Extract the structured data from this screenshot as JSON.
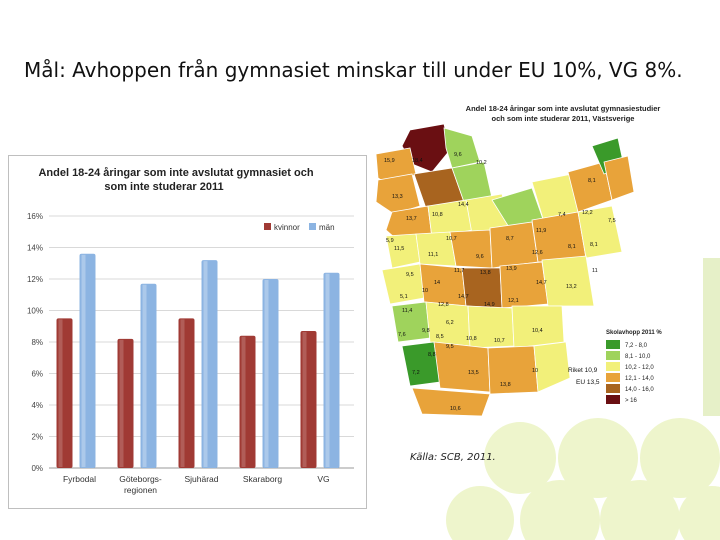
{
  "slide": {
    "title": "Mål: Avhoppen från gymnasiet minskar till under EU 10%, VG 8%.",
    "source": "Källa: SCB, 2011."
  },
  "chart_data": {
    "type": "bar",
    "title": "Andel 18-24 åringar som inte avslutat gymnasiet och som inte studerar 2011",
    "title_lines": [
      "Andel 18-24 åringar som inte avslutat gymnasiet och",
      "som inte studerar 2011"
    ],
    "categories": [
      "Fyrbodal",
      "Göteborgs-regionen",
      "Sjuhärad",
      "Skaraborg",
      "VG"
    ],
    "category_lines": [
      [
        "Fyrbodal"
      ],
      [
        "Göteborgs-",
        "regionen"
      ],
      [
        "Sjuhärad"
      ],
      [
        "Skaraborg"
      ],
      [
        "VG"
      ]
    ],
    "series": [
      {
        "name": "kvinnor",
        "color": "#a03a34",
        "values": [
          9.5,
          8.2,
          9.5,
          8.4,
          8.7
        ]
      },
      {
        "name": "män",
        "color": "#8cb4e2",
        "values": [
          13.6,
          11.7,
          13.2,
          12.0,
          12.4
        ]
      }
    ],
    "ylim": [
      0,
      16
    ],
    "yticks": [
      "0%",
      "2%",
      "4%",
      "6%",
      "8%",
      "10%",
      "12%",
      "14%",
      "16%"
    ],
    "grid": true,
    "legend_position": "top-right"
  },
  "map": {
    "title_lines": [
      "Andel 18-24 åringar som inte avslutat gymnasiestudier",
      "och som inte studerar 2011, Västsverige"
    ],
    "legend_title": "Skolavhopp 2011 %",
    "legend": [
      {
        "label": "7,2 - 8,0",
        "color": "#3a9a2a"
      },
      {
        "label": "8,1 - 10,0",
        "color": "#9fd35c"
      },
      {
        "label": "10,2 - 12,0",
        "color": "#f2f07a"
      },
      {
        "label": "12,1 - 14,0",
        "color": "#e8a33a"
      },
      {
        "label": "14,0 - 16,0",
        "color": "#a8641f"
      },
      {
        "label": "> 16",
        "color": "#6a0f12"
      }
    ],
    "riket": "Riket 10,9",
    "eu": "EU 13,5",
    "numbers": [
      "15,9",
      "9,6",
      "10,2",
      "18,4",
      "8,1",
      "13,3",
      "14,4",
      "12,2",
      "13,7",
      "10,8",
      "7,4",
      "7,5",
      "5,9",
      "10,7",
      "8,7",
      "11,9",
      "11,5",
      "11,1",
      "9,6",
      "12,6",
      "8,1",
      "8,1",
      "9,5",
      "11,7",
      "13,8",
      "13,9",
      "11",
      "14,7",
      "14",
      "13,2",
      "5,1",
      "10",
      "14,7",
      "12,1",
      "11,4",
      "12,8",
      "14,9",
      "6,2",
      "10,4",
      "7,6",
      "9,8",
      "8,5",
      "10,8",
      "10,7",
      "9,5",
      "8,8",
      "7,2",
      "13,5",
      "10",
      "13,8",
      "10,6"
    ]
  }
}
